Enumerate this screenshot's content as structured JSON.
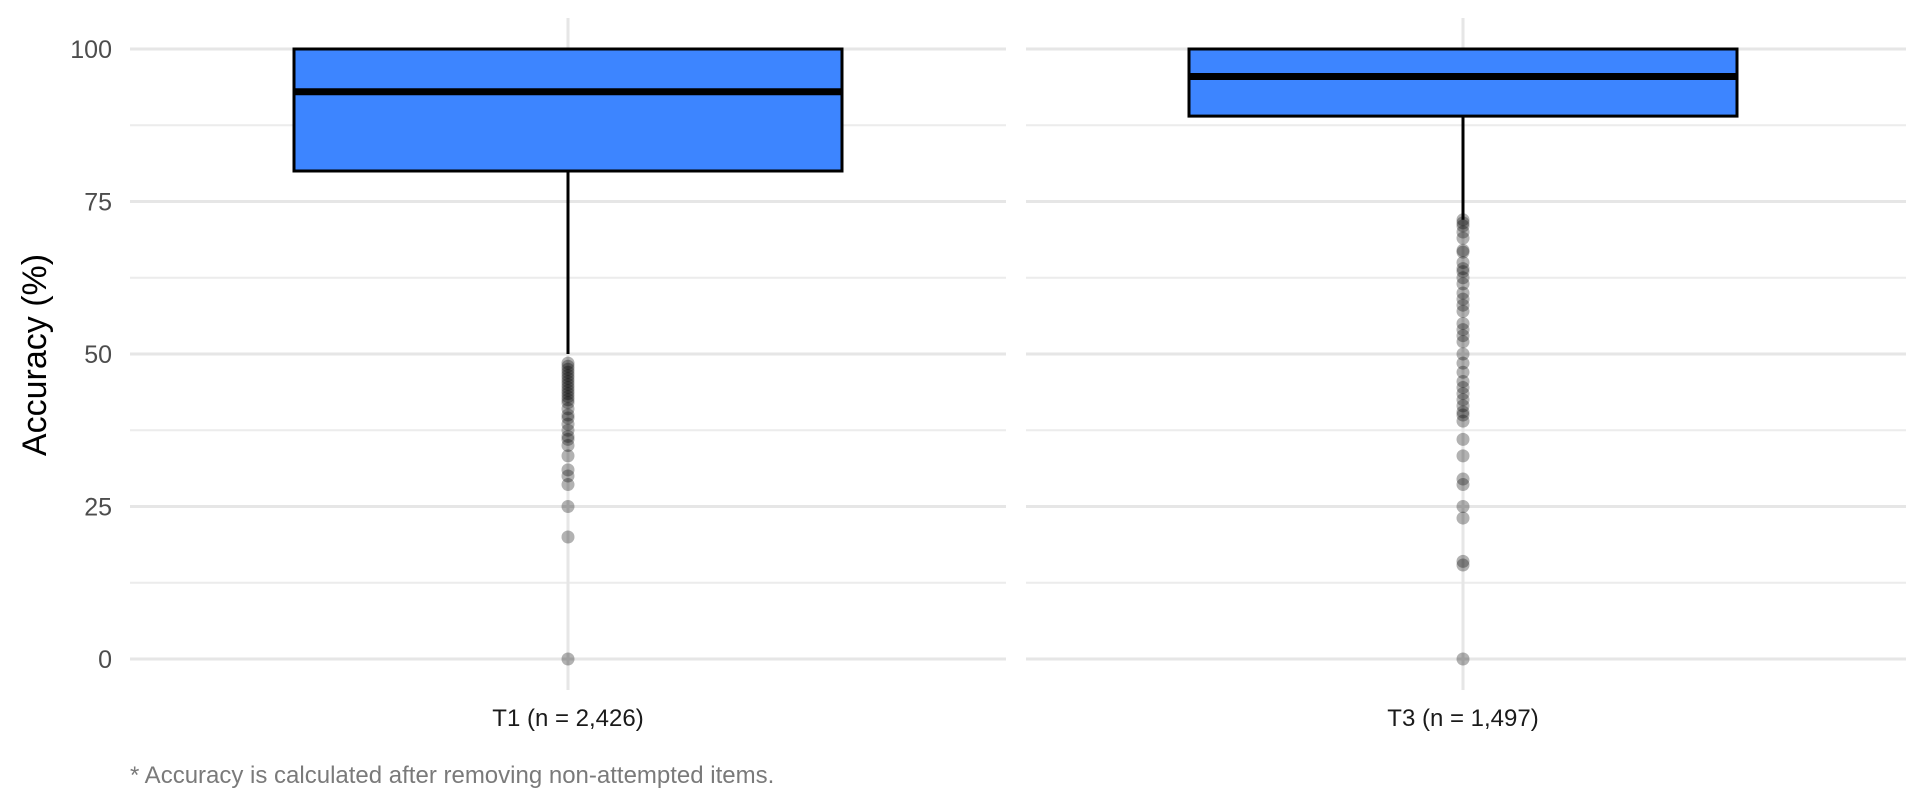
{
  "chart_data": {
    "type": "boxplot",
    "ylabel": "Accuracy (%)",
    "xlabel": "",
    "ylim": [
      -5,
      105
    ],
    "yticks": [
      0,
      25,
      50,
      75,
      100
    ],
    "grid": true,
    "colors": {
      "box_fill": "#3d85ff",
      "box_edge": "#000000",
      "outlier": "#000000"
    },
    "caption": "* Accuracy is calculated after removing non-attempted items.",
    "panels": [
      {
        "label": "T1 (n = 2,426)",
        "box": {
          "min": 50,
          "q1": 80,
          "median": 93,
          "q3": 100,
          "max": 100
        },
        "outliers": [
          48.5,
          48,
          47.5,
          47,
          46.5,
          46,
          45.5,
          45,
          44.5,
          44,
          43.5,
          43,
          42.5,
          42,
          41,
          40,
          39.5,
          38.5,
          37.5,
          36.5,
          36,
          35,
          33.3,
          31,
          30,
          28.6,
          25,
          20,
          0
        ]
      },
      {
        "label": "T3 (n = 1,497)",
        "box": {
          "min": 72,
          "q1": 89,
          "median": 95.5,
          "q3": 100,
          "max": 100
        },
        "outliers": [
          72,
          71.5,
          71,
          70,
          69,
          67,
          66.7,
          65,
          64,
          63.5,
          62.5,
          61.5,
          60,
          59,
          58,
          57,
          55,
          54,
          53,
          52,
          50,
          48.5,
          47,
          45.5,
          44.5,
          43.5,
          42.5,
          41.5,
          40.5,
          40,
          39,
          36,
          33.3,
          29.5,
          28.6,
          25,
          23.1,
          16,
          15.4,
          0
        ]
      }
    ]
  }
}
